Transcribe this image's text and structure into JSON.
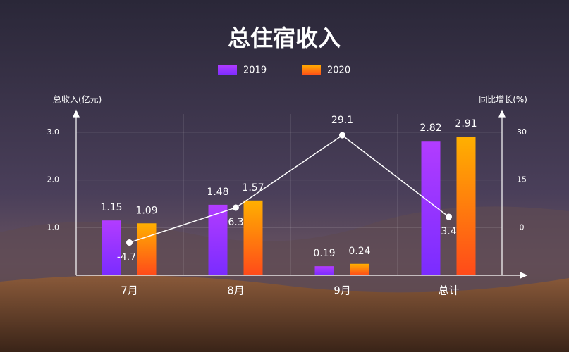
{
  "chart_data": {
    "type": "bar",
    "title": "总住宿收入",
    "y_label": "总收入(亿元)",
    "y2_label": "同比增长(%)",
    "categories": [
      "7月",
      "8月",
      "9月",
      "总计"
    ],
    "series": [
      {
        "name": "2019",
        "color": "#b23cff",
        "values": [
          1.15,
          1.48,
          0.19,
          2.82
        ]
      },
      {
        "name": "2020",
        "color": "#ffb000",
        "values": [
          1.09,
          1.57,
          0.24,
          2.91
        ]
      },
      {
        "type": "line",
        "axis": "y2",
        "color": "#ffffff",
        "values": [
          -4.7,
          6.3,
          29.1,
          3.4
        ]
      }
    ],
    "ylim": [
      0,
      3.4
    ],
    "yticks": [
      {
        "value": 1,
        "label": "1.0"
      },
      {
        "value": 2,
        "label": "2.0"
      },
      {
        "value": 3,
        "label": "3.0"
      }
    ],
    "y2lim": [
      -15,
      36
    ],
    "y2ticks": [
      0,
      15,
      30
    ],
    "grid": true
  }
}
